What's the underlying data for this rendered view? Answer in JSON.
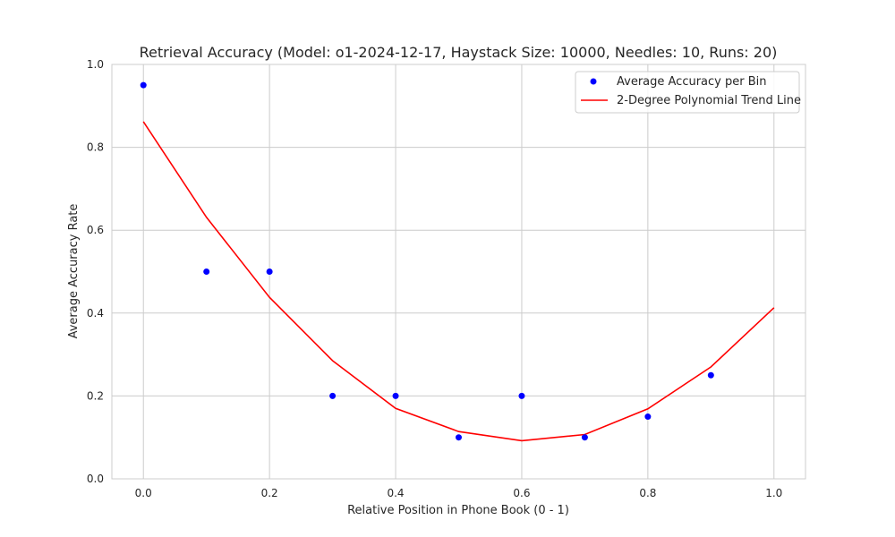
{
  "chart_data": {
    "type": "scatter",
    "title": "Retrieval Accuracy (Model: o1-2024-12-17, Haystack Size: 10000, Needles: 10, Runs: 20)",
    "xlabel": "Relative Position in Phone Book (0 - 1)",
    "ylabel": "Average Accuracy Rate",
    "xlim": [
      -0.05,
      1.05
    ],
    "ylim": [
      0,
      1
    ],
    "x_ticks": [
      "0.0",
      "0.2",
      "0.4",
      "0.6",
      "0.8",
      "1.0"
    ],
    "y_ticks": [
      "0.0",
      "0.2",
      "0.4",
      "0.6",
      "0.8",
      "1.0"
    ],
    "grid": true,
    "legend_position": "top-right",
    "series": [
      {
        "name": "Average Accuracy per Bin",
        "kind": "scatter",
        "color": "#0000ff",
        "x": [
          0.0,
          0.1,
          0.2,
          0.3,
          0.4,
          0.5,
          0.6,
          0.7,
          0.8,
          0.9
        ],
        "y": [
          0.95,
          0.5,
          0.5,
          0.2,
          0.2,
          0.1,
          0.2,
          0.1,
          0.15,
          0.25
        ]
      },
      {
        "name": "2-Degree Polynomial Trend Line",
        "kind": "line",
        "color": "#ff0000",
        "x": [
          0.0,
          0.1,
          0.2,
          0.3,
          0.4,
          0.5,
          0.6,
          0.7,
          0.8,
          0.9,
          1.0
        ],
        "y": [
          0.862,
          0.631,
          0.438,
          0.285,
          0.17,
          0.114,
          0.092,
          0.107,
          0.169,
          0.27,
          0.413
        ]
      }
    ]
  }
}
